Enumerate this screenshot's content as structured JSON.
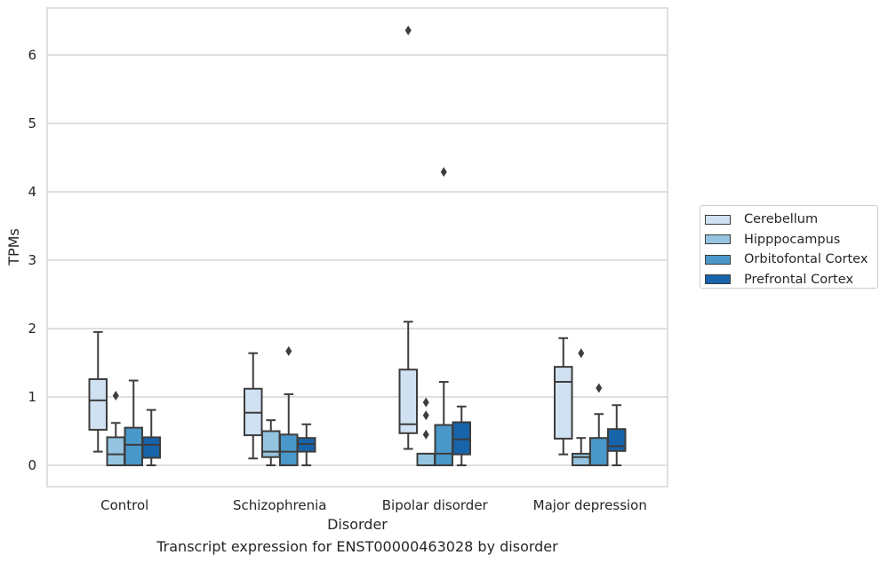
{
  "caption": "Transcript expression for ENST00000463028 by disorder",
  "chart_data": {
    "type": "boxplot",
    "xlabel": "Disorder",
    "ylabel": "TPMs",
    "ylim": [
      -0.3,
      6.7
    ],
    "yticks": [
      0,
      1,
      2,
      3,
      4,
      5,
      6
    ],
    "grid": "horizontal",
    "legend_placement": "right",
    "categories": [
      "Control",
      "Schizophrenia",
      "Bipolar disorder",
      "Major depression"
    ],
    "series": [
      {
        "name": "Cerebellum",
        "color": "#d0e1f2",
        "boxes": [
          {
            "whisker_low": 0.2,
            "q1": 0.52,
            "median": 0.95,
            "q3": 1.26,
            "whisker_high": 1.95,
            "outliers": []
          },
          {
            "whisker_low": 0.1,
            "q1": 0.44,
            "median": 0.77,
            "q3": 1.12,
            "whisker_high": 1.64,
            "outliers": []
          },
          {
            "whisker_low": 0.24,
            "q1": 0.47,
            "median": 0.6,
            "q3": 1.4,
            "whisker_high": 2.1,
            "outliers": [
              6.36
            ]
          },
          {
            "whisker_low": 0.16,
            "q1": 0.39,
            "median": 1.22,
            "q3": 1.44,
            "whisker_high": 1.86,
            "outliers": []
          }
        ]
      },
      {
        "name": "Hipppocampus",
        "color": "#94c4df",
        "boxes": [
          {
            "whisker_low": 0.0,
            "q1": 0.0,
            "median": 0.16,
            "q3": 0.41,
            "whisker_high": 0.62,
            "outliers": [
              1.02
            ]
          },
          {
            "whisker_low": 0.0,
            "q1": 0.12,
            "median": 0.2,
            "q3": 0.5,
            "whisker_high": 0.66,
            "outliers": []
          },
          {
            "whisker_low": 0.0,
            "q1": 0.0,
            "median": 0.0,
            "q3": 0.17,
            "whisker_high": 0.17,
            "outliers": [
              0.45,
              0.73,
              0.92
            ]
          },
          {
            "whisker_low": 0.0,
            "q1": 0.0,
            "median": 0.12,
            "q3": 0.17,
            "whisker_high": 0.4,
            "outliers": [
              1.64
            ]
          }
        ]
      },
      {
        "name": "Orbitofontal Cortex",
        "color": "#4a98c9",
        "boxes": [
          {
            "whisker_low": 0.0,
            "q1": 0.0,
            "median": 0.3,
            "q3": 0.55,
            "whisker_high": 1.24,
            "outliers": []
          },
          {
            "whisker_low": 0.0,
            "q1": 0.0,
            "median": 0.2,
            "q3": 0.45,
            "whisker_high": 1.04,
            "outliers": [
              1.67
            ]
          },
          {
            "whisker_low": 0.0,
            "q1": 0.0,
            "median": 0.17,
            "q3": 0.59,
            "whisker_high": 1.22,
            "outliers": [
              4.29
            ]
          },
          {
            "whisker_low": 0.0,
            "q1": 0.0,
            "median": 0.0,
            "q3": 0.4,
            "whisker_high": 0.75,
            "outliers": [
              1.13
            ]
          }
        ]
      },
      {
        "name": "Prefrontal Cortex",
        "color": "#1764ab",
        "boxes": [
          {
            "whisker_low": 0.0,
            "q1": 0.11,
            "median": 0.3,
            "q3": 0.41,
            "whisker_high": 0.81,
            "outliers": []
          },
          {
            "whisker_low": 0.0,
            "q1": 0.2,
            "median": 0.31,
            "q3": 0.4,
            "whisker_high": 0.6,
            "outliers": []
          },
          {
            "whisker_low": 0.0,
            "q1": 0.16,
            "median": 0.38,
            "q3": 0.63,
            "whisker_high": 0.86,
            "outliers": []
          },
          {
            "whisker_low": 0.0,
            "q1": 0.21,
            "median": 0.28,
            "q3": 0.53,
            "whisker_high": 0.88,
            "outliers": []
          }
        ]
      }
    ]
  }
}
